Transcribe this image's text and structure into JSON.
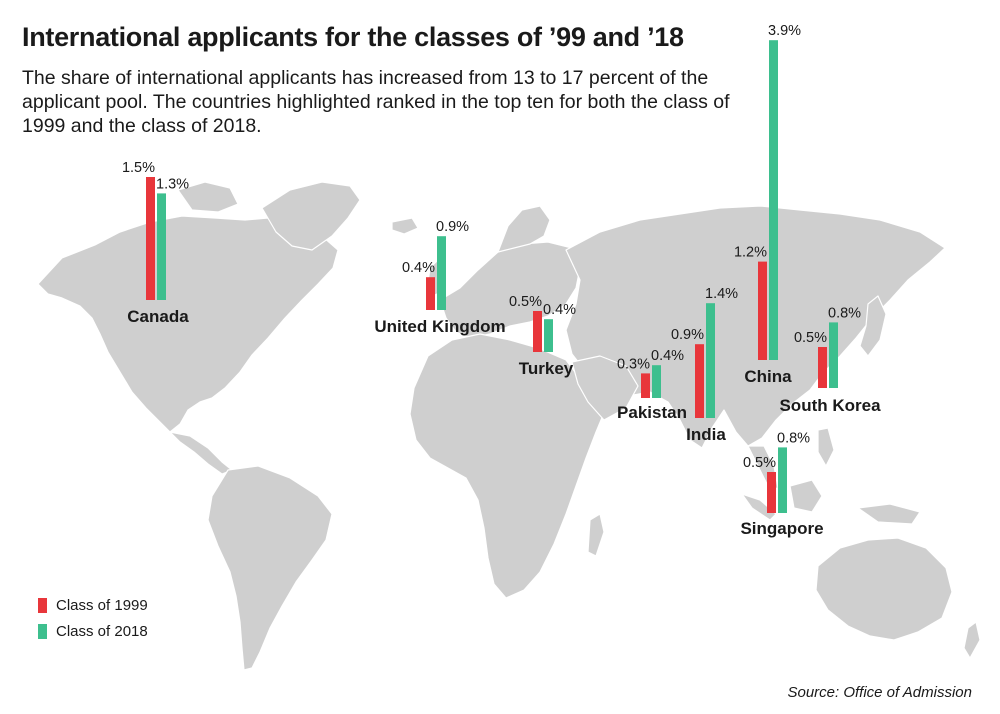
{
  "title": "International applicants for the classes of ’99 and ’18",
  "subtitle": "The share of international applicants has increased from 13 to 17 percent of the applicant pool. The countries highlighted ranked in the top ten for both the class of 1999 and the class of 2018.",
  "legend": [
    {
      "label": "Class of 1999",
      "color": "#e8363b"
    },
    {
      "label": "Class of 2018",
      "color": "#3dbf8e"
    }
  ],
  "source": "Source: Office of Admission",
  "colors": {
    "land": "#cfcfcf",
    "class_1999": "#e8363b",
    "class_2018": "#3dbf8e"
  },
  "chart_data": {
    "type": "bar",
    "unit": "percent of applicant pool",
    "categories": [
      "Canada",
      "United Kingdom",
      "Turkey",
      "Pakistan",
      "India",
      "China",
      "South Korea",
      "Singapore"
    ],
    "series": [
      {
        "name": "Class of 1999",
        "values": [
          1.5,
          0.4,
          0.5,
          0.3,
          0.9,
          1.2,
          0.5,
          0.5
        ],
        "labels": [
          "1.5%",
          "0.4%",
          "0.5%",
          "0.3%",
          "0.9%",
          "1.2%",
          "0.5%",
          "0.5%"
        ]
      },
      {
        "name": "Class of 2018",
        "values": [
          1.3,
          0.9,
          0.4,
          0.4,
          1.4,
          3.9,
          0.8,
          0.8
        ],
        "labels": [
          "1.3%",
          "0.9%",
          "0.4%",
          "0.4%",
          "1.4%",
          "3.9%",
          "0.8%",
          "0.8%"
        ]
      }
    ]
  }
}
